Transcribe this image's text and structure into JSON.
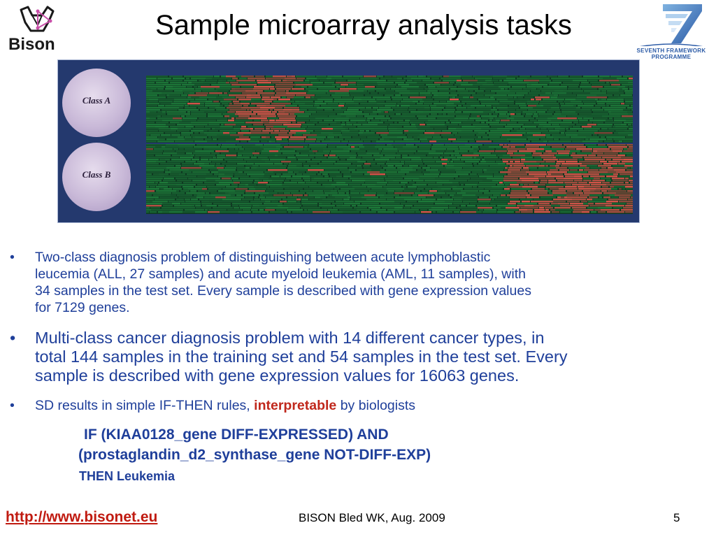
{
  "slide": {
    "title": "Sample microarray analysis tasks",
    "logos": {
      "bison_word": "Bison",
      "fp7_line1": "SEVENTH FRAMEWORK",
      "fp7_line2": "PROGRAMME",
      "fp7_number": "7"
    },
    "figure": {
      "class_a_label": "Class A",
      "class_b_label": "Class B",
      "colors": {
        "background": "#24396e",
        "green": "#1e7a3a",
        "red": "#d9544a"
      }
    },
    "bullets": [
      {
        "marker": "•",
        "lines": [
          "Two-class diagnosis problem of distinguishing between acute lymphoblastic",
          "leucemia (ALL, 27 samples) and acute myeloid leukemia (AML, 11 samples), with",
          "34 samples in the test set. Every sample is described with gene expression values",
          "for 7129 genes."
        ]
      },
      {
        "marker": "•",
        "lines": [
          "Multi-class cancer diagnosis problem with 14 different cancer types, in",
          "total 144 samples in the training set and 54 samples in the test set. Every",
          "sample is described with gene expression values for 16063 genes."
        ]
      },
      {
        "marker": "•",
        "prefix": "SD results in simple IF-THEN rules, ",
        "highlight": "interpretable",
        "suffix": " by biologists"
      }
    ],
    "rule": {
      "line1": "IF  (KIAA0128_gene DIFF-EXPRESSED) AND",
      "line2": "(prostaglandin_d2_synthase_gene NOT-DIFF-EXP)",
      "then": "THEN Leukemia"
    },
    "footer": {
      "url": "http://www.bisonet.eu",
      "event": "BISON Bled WK, Aug. 2009",
      "page_number": "5"
    }
  }
}
